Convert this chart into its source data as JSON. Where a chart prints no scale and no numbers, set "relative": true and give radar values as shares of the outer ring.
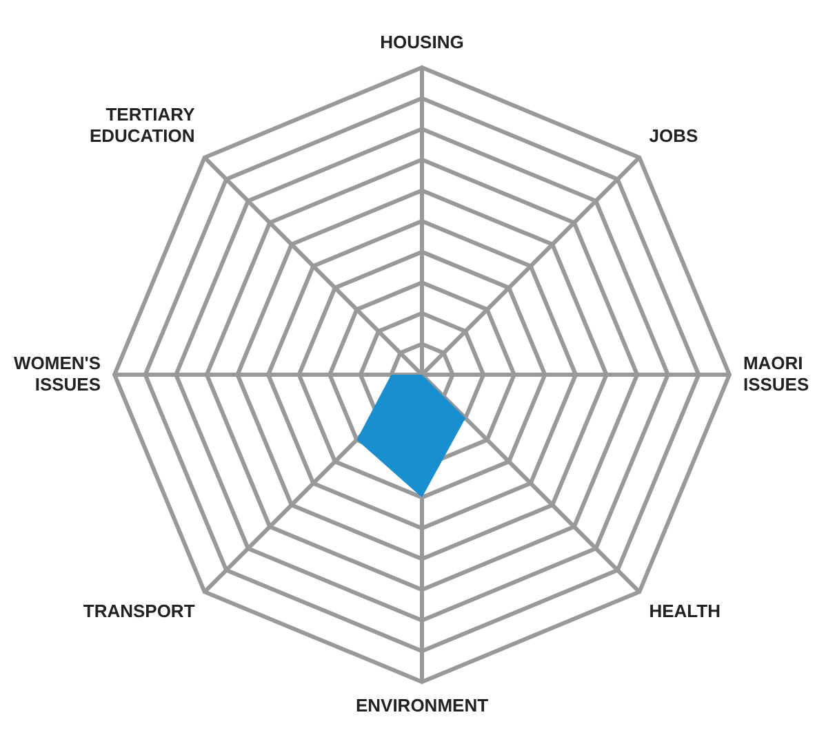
{
  "chart_data": {
    "type": "radar",
    "relative": true,
    "grid": true,
    "legend": false,
    "marker": "none",
    "categories": [
      "HOUSING",
      "JOBS",
      "MAORI ISSUES",
      "HEALTH",
      "ENVIRONMENT",
      "TRANSPORT",
      "WOMEN'S ISSUES",
      "TERTIARY EDUCATION"
    ],
    "series": [
      {
        "color": "#1a8fd0",
        "values": [
          0,
          0,
          0,
          0.2,
          0.4,
          0.3,
          0.1,
          0
        ]
      }
    ]
  }
}
